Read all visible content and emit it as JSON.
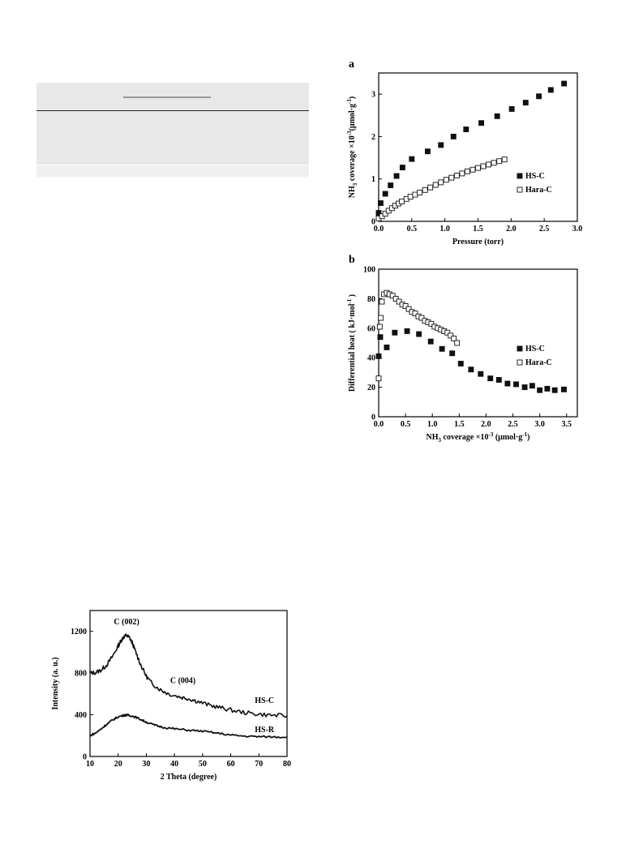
{
  "chart_data": [
    {
      "panel": "a",
      "type": "scatter",
      "xlabel": "Pressure (torr)",
      "ylabel": "NH3 coverage ×10-3(μmol·g-1)",
      "xlim": [
        0,
        3.0
      ],
      "ylim": [
        0,
        3.5
      ],
      "xticks": [
        "0.0",
        "0.5",
        "1.0",
        "1.5",
        "2.0",
        "2.5",
        "3.0"
      ],
      "yticks": [
        "0",
        "1",
        "2",
        "3"
      ],
      "legend": "right",
      "series": [
        {
          "name": "HS-C",
          "marker": "filled-square",
          "x": [
            0.0,
            0.03,
            0.1,
            0.18,
            0.27,
            0.36,
            0.5,
            0.74,
            0.94,
            1.13,
            1.32,
            1.55,
            1.79,
            2.01,
            2.22,
            2.42,
            2.6,
            2.8
          ],
          "y": [
            0.2,
            0.43,
            0.65,
            0.85,
            1.07,
            1.27,
            1.47,
            1.65,
            1.8,
            2.0,
            2.17,
            2.32,
            2.48,
            2.65,
            2.8,
            2.95,
            3.1,
            3.25
          ]
        },
        {
          "name": "Hara-C",
          "marker": "open-square",
          "x": [
            0.0,
            0.05,
            0.1,
            0.15,
            0.2,
            0.25,
            0.3,
            0.35,
            0.42,
            0.48,
            0.55,
            0.62,
            0.7,
            0.78,
            0.86,
            0.94,
            1.02,
            1.1,
            1.18,
            1.26,
            1.34,
            1.42,
            1.5,
            1.58,
            1.66,
            1.74,
            1.82,
            1.9
          ],
          "y": [
            0.07,
            0.12,
            0.18,
            0.25,
            0.31,
            0.37,
            0.42,
            0.47,
            0.53,
            0.58,
            0.63,
            0.68,
            0.74,
            0.8,
            0.86,
            0.92,
            0.98,
            1.03,
            1.08,
            1.13,
            1.18,
            1.22,
            1.26,
            1.3,
            1.34,
            1.38,
            1.42,
            1.46
          ]
        }
      ]
    },
    {
      "panel": "b",
      "type": "scatter",
      "xlabel": "NH3 coverage ×10-3 (μmol·g-1)",
      "ylabel": "Differential heat ( kJ·mol-1 )",
      "xlim": [
        0,
        3.7
      ],
      "ylim": [
        0,
        100
      ],
      "xticks": [
        "0.0",
        "0.5",
        "1.0",
        "1.5",
        "2.0",
        "2.5",
        "3.0",
        "3.5"
      ],
      "yticks": [
        "0",
        "20",
        "40",
        "60",
        "80",
        "100"
      ],
      "legend": "right",
      "series": [
        {
          "name": "HS-C",
          "marker": "filled-square",
          "x": [
            0.0,
            0.03,
            0.15,
            0.3,
            0.53,
            0.75,
            0.97,
            1.18,
            1.37,
            1.53,
            1.72,
            1.9,
            2.08,
            2.24,
            2.4,
            2.56,
            2.72,
            2.86,
            3.0,
            3.14,
            3.28,
            3.45
          ],
          "y": [
            41,
            54,
            47,
            57,
            58,
            56,
            51,
            46,
            43,
            36,
            32,
            29,
            26,
            25,
            22.5,
            22,
            20,
            21,
            18,
            19,
            18,
            18.5
          ]
        },
        {
          "name": "Hara-C",
          "marker": "open-square",
          "x": [
            0.0,
            0.02,
            0.04,
            0.06,
            0.1,
            0.15,
            0.2,
            0.26,
            0.32,
            0.38,
            0.44,
            0.5,
            0.56,
            0.62,
            0.68,
            0.74,
            0.8,
            0.86,
            0.92,
            0.98,
            1.04,
            1.1,
            1.16,
            1.22,
            1.28,
            1.34,
            1.4,
            1.46
          ],
          "y": [
            26,
            61,
            67,
            78,
            83,
            84,
            83,
            82,
            80,
            78,
            76,
            75,
            73,
            71,
            70,
            68,
            67,
            65,
            64,
            63,
            61,
            60,
            59,
            58,
            57,
            55,
            53,
            50
          ]
        }
      ]
    },
    {
      "type": "line",
      "xlabel": "2 Theta (degree)",
      "ylabel": "Intensity (a. u.)",
      "xlim": [
        10,
        80
      ],
      "ylim": [
        0,
        1400
      ],
      "xticks": [
        "10",
        "20",
        "30",
        "40",
        "50",
        "60",
        "70",
        "80"
      ],
      "yticks": [
        "0",
        "400",
        "800",
        "1200"
      ],
      "annotations": [
        "C (002)",
        "C (004)"
      ],
      "series": [
        {
          "name": "HS-C",
          "x": [
            10,
            12,
            14,
            16,
            18,
            20,
            21,
            22,
            23,
            24,
            25,
            26,
            28,
            30,
            32,
            35,
            38,
            42,
            45,
            48,
            52,
            56,
            60,
            65,
            70,
            75,
            80
          ],
          "y": [
            800,
            805,
            830,
            880,
            960,
            1060,
            1110,
            1150,
            1160,
            1140,
            1090,
            1020,
            880,
            770,
            700,
            640,
            600,
            570,
            555,
            530,
            495,
            470,
            445,
            420,
            405,
            395,
            390
          ]
        },
        {
          "name": "HS-R",
          "x": [
            10,
            12,
            14,
            16,
            18,
            20,
            22,
            23,
            24,
            26,
            28,
            30,
            33,
            36,
            40,
            45,
            50,
            55,
            60,
            65,
            70,
            75,
            80
          ],
          "y": [
            200,
            225,
            265,
            310,
            350,
            380,
            395,
            398,
            395,
            380,
            355,
            330,
            300,
            280,
            265,
            252,
            242,
            225,
            205,
            195,
            190,
            188,
            186
          ]
        }
      ]
    }
  ]
}
